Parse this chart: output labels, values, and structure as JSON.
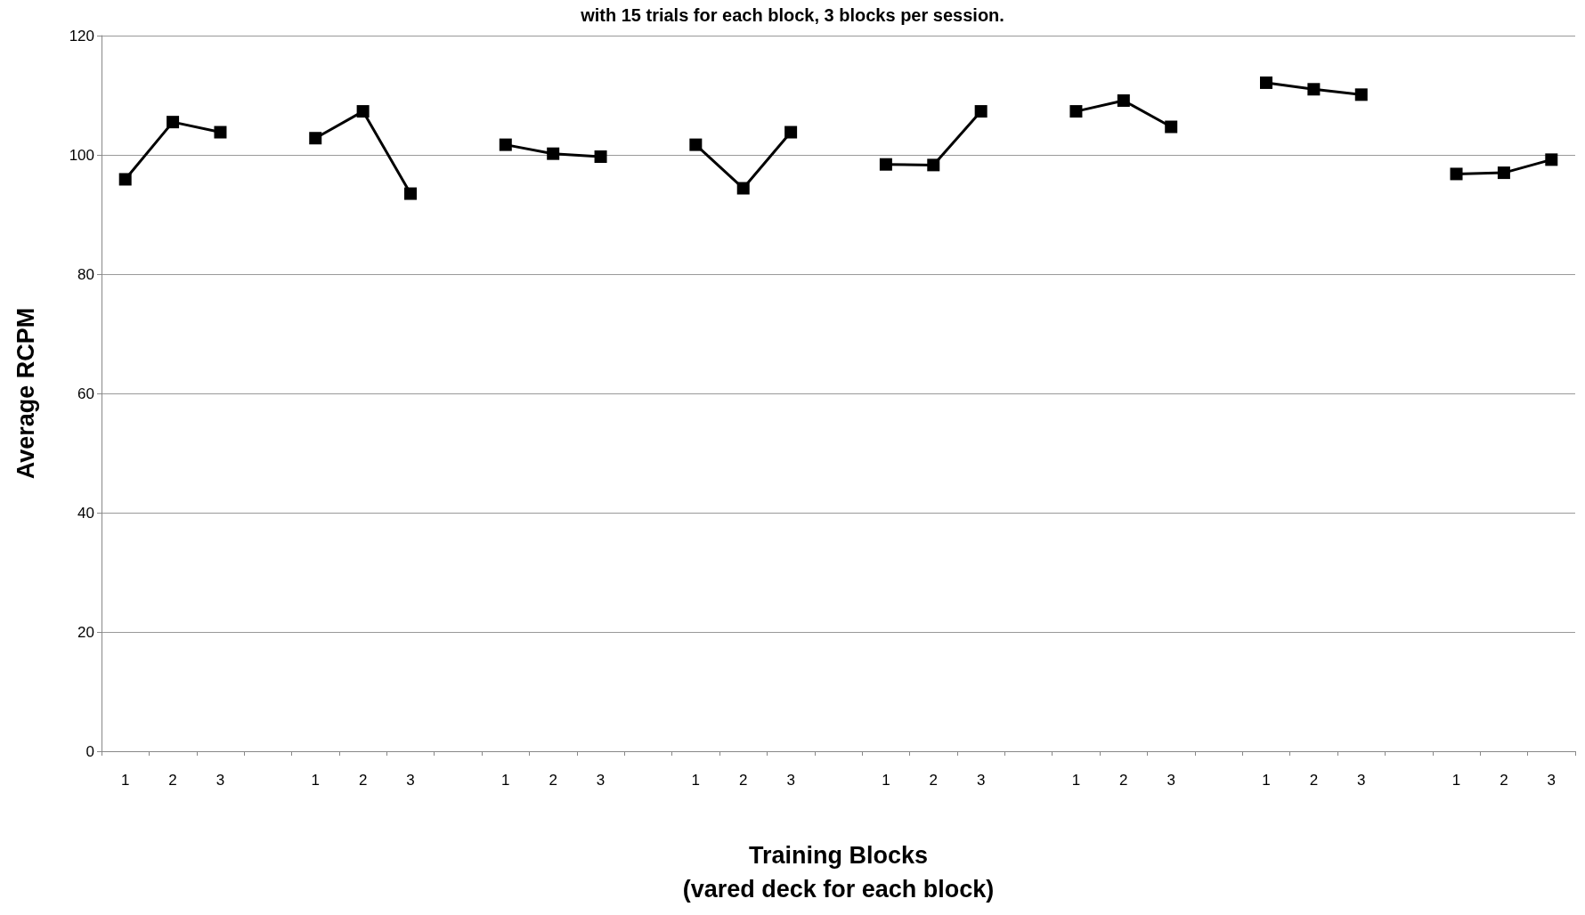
{
  "chart_data": {
    "type": "line",
    "title": "with 15 trials for each block, 3 blocks per session.",
    "xlabel": "Training Blocks\n(vared deck for each block)",
    "ylabel": "Average RCPM",
    "categories": [
      "1",
      "2",
      "3",
      null,
      "1",
      "2",
      "3",
      null,
      "1",
      "2",
      "3",
      null,
      "1",
      "2",
      "3",
      null,
      "1",
      "2",
      "3",
      null,
      "1",
      "2",
      "3",
      null,
      "1",
      "2",
      "3",
      null,
      "1",
      "2",
      "3"
    ],
    "series": [
      {
        "color": "#000000",
        "values": [
          95.9,
          105.5,
          103.8,
          null,
          102.8,
          107.3,
          93.5,
          null,
          101.7,
          100.2,
          99.7,
          null,
          101.7,
          94.4,
          103.8,
          null,
          98.4,
          98.3,
          107.3,
          null,
          107.3,
          109.1,
          104.7,
          null,
          112.1,
          111.0,
          110.1,
          null,
          96.8,
          97.0,
          99.2
        ]
      }
    ],
    "ylim": [
      0,
      120
    ],
    "yticks": [
      0,
      20,
      40,
      60,
      80,
      100,
      120
    ],
    "grid": "y",
    "marker": "square",
    "line_style": "solid"
  }
}
